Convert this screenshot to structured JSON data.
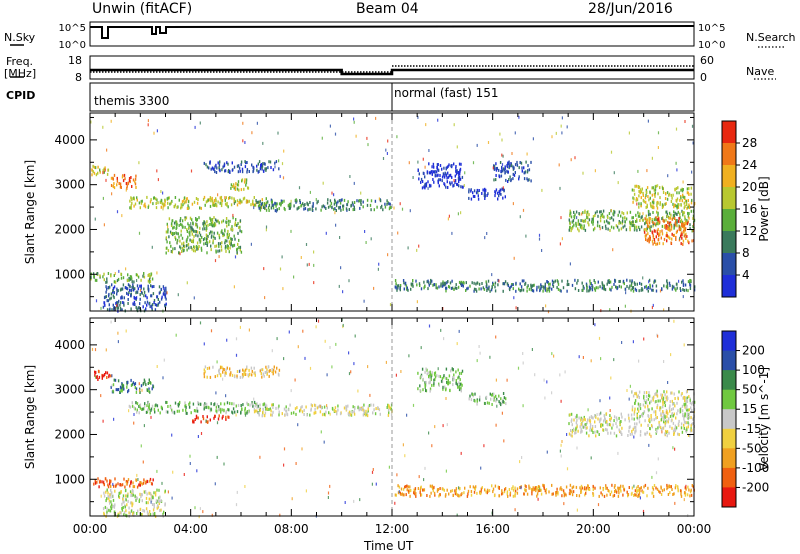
{
  "header": {
    "site": "Unwin (fitACF)",
    "beam": "Beam 04",
    "date": "28/Jun/2016"
  },
  "strip_labels": {
    "nsky": "N.Sky",
    "nsearch": "N.Search",
    "freq_line1": "Freq.",
    "freq_line2": "[MHz]",
    "nave": "Nave",
    "cpid": "CPID",
    "nsky_ticks": [
      "10^5",
      "10^0"
    ],
    "nsearch_ticks": [
      "10^5",
      "10^0"
    ],
    "freq_ticks": [
      "18",
      "8"
    ],
    "nave_ticks": [
      "60",
      "0"
    ]
  },
  "cpid_segments": [
    {
      "label": "themis 3300",
      "start_hour": 0,
      "end_hour": 12
    },
    {
      "label": "normal (fast) 151",
      "start_hour": 12,
      "end_hour": 24
    }
  ],
  "x_axis": {
    "label": "Time UT",
    "ticks": [
      "00:00",
      "04:00",
      "08:00",
      "12:00",
      "16:00",
      "20:00",
      "00:00"
    ],
    "range_hours": [
      0,
      24
    ]
  },
  "y_axis": {
    "label": "Slant Range [km]",
    "ticks": [
      "1000",
      "2000",
      "3000",
      "4000"
    ],
    "range": [
      180,
      4600
    ]
  },
  "chart_data": [
    {
      "type": "heatmap",
      "panel": "power",
      "colorbar_label": "Power [dB]",
      "colorbar_ticks": [
        "4",
        "8",
        "12",
        "16",
        "20",
        "24",
        "28"
      ],
      "colors": [
        "#1f2fd8",
        "#2a4fa8",
        "#3a7a5c",
        "#5aae3a",
        "#b8c830",
        "#f0b020",
        "#f07818",
        "#e82810"
      ],
      "x_range_hours": [
        0,
        24
      ],
      "y_range_km": [
        180,
        4600
      ],
      "bands": [
        {
          "t0": 0.0,
          "t1": 0.8,
          "r0": 3250,
          "r1": 3450,
          "level": 4
        },
        {
          "t0": 0.8,
          "t1": 1.8,
          "r0": 2950,
          "r1": 3250,
          "level": 6
        },
        {
          "t0": 0.0,
          "t1": 2.5,
          "r0": 850,
          "r1": 1050,
          "level": 3
        },
        {
          "t0": 0.5,
          "t1": 3.0,
          "r0": 200,
          "r1": 800,
          "level": 1
        },
        {
          "t0": 1.5,
          "t1": 7.0,
          "r0": 2500,
          "r1": 2750,
          "level": 4
        },
        {
          "t0": 4.5,
          "t1": 7.5,
          "r0": 3300,
          "r1": 3550,
          "level": 1
        },
        {
          "t0": 5.5,
          "t1": 6.3,
          "r0": 2900,
          "r1": 3150,
          "level": 4
        },
        {
          "t0": 6.5,
          "t1": 12.0,
          "r0": 2450,
          "r1": 2700,
          "level": 2
        },
        {
          "t0": 3.0,
          "t1": 6.0,
          "r0": 1500,
          "r1": 2300,
          "level": 3
        },
        {
          "t0": 12.1,
          "t1": 24.0,
          "r0": 650,
          "r1": 900,
          "level": 2
        },
        {
          "t0": 13.0,
          "t1": 14.8,
          "r0": 2950,
          "r1": 3500,
          "level": 0
        },
        {
          "t0": 15.0,
          "t1": 16.5,
          "r0": 2700,
          "r1": 2950,
          "level": 0
        },
        {
          "t0": 16.0,
          "t1": 17.5,
          "r0": 3100,
          "r1": 3550,
          "level": 1
        },
        {
          "t0": 19.0,
          "t1": 24.0,
          "r0": 2000,
          "r1": 2450,
          "level": 3
        },
        {
          "t0": 22.0,
          "t1": 24.0,
          "r0": 1700,
          "r1": 2300,
          "level": 6
        },
        {
          "t0": 21.5,
          "t1": 24.0,
          "r0": 2500,
          "r1": 3000,
          "level": 4
        }
      ]
    },
    {
      "type": "heatmap",
      "panel": "velocity",
      "colorbar_label": "Velocity [m s^-1]",
      "colorbar_ticks": [
        "200",
        "100",
        "50",
        "15",
        "-15",
        "-50",
        "-100",
        "-200"
      ],
      "colors": [
        "#1f2fd8",
        "#2a4fa8",
        "#3a8a4a",
        "#70c840",
        "#c8c8c8",
        "#f0d040",
        "#f0a020",
        "#f06010",
        "#e81810"
      ],
      "x_range_hours": [
        0,
        24
      ],
      "y_range_km": [
        180,
        4600
      ],
      "bands": [
        {
          "t0": 0.0,
          "t1": 0.8,
          "r0": 3250,
          "r1": 3450,
          "level": 8
        },
        {
          "t0": 0.8,
          "t1": 2.5,
          "r0": 2950,
          "r1": 3250,
          "level": 2
        },
        {
          "t0": 0.0,
          "t1": 2.5,
          "r0": 850,
          "r1": 1050,
          "level": 7
        },
        {
          "t0": 0.5,
          "t1": 3.0,
          "r0": 200,
          "r1": 800,
          "level": 4
        },
        {
          "t0": 1.5,
          "t1": 7.0,
          "r0": 2500,
          "r1": 2750,
          "level": 3
        },
        {
          "t0": 4.5,
          "t1": 7.5,
          "r0": 3300,
          "r1": 3550,
          "level": 5
        },
        {
          "t0": 4.0,
          "t1": 5.5,
          "r0": 2300,
          "r1": 2450,
          "level": 8
        },
        {
          "t0": 6.5,
          "t1": 12.0,
          "r0": 2450,
          "r1": 2700,
          "level": 4
        },
        {
          "t0": 12.1,
          "t1": 24.0,
          "r0": 650,
          "r1": 900,
          "level": 6
        },
        {
          "t0": 13.0,
          "t1": 14.8,
          "r0": 3000,
          "r1": 3500,
          "level": 3
        },
        {
          "t0": 15.0,
          "t1": 16.5,
          "r0": 2700,
          "r1": 2950,
          "level": 3
        },
        {
          "t0": 19.0,
          "t1": 24.0,
          "r0": 2000,
          "r1": 2500,
          "level": 4
        },
        {
          "t0": 21.5,
          "t1": 24.0,
          "r0": 2500,
          "r1": 3000,
          "level": 4
        }
      ]
    }
  ]
}
